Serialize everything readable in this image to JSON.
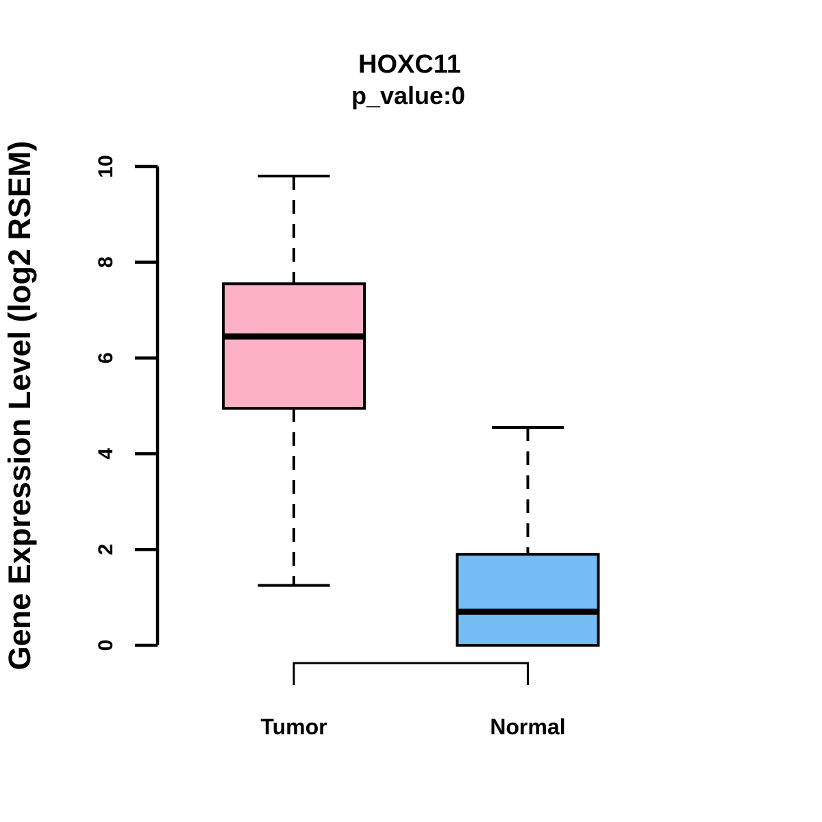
{
  "chart_data": {
    "type": "boxplot",
    "title": "HOXC11",
    "subtitle": "p_value:0",
    "xlabel": "",
    "ylabel": "Gene Expression Level (log2 RSEM)",
    "categories": [
      "Tumor",
      "Normal"
    ],
    "ylim": [
      0,
      10
    ],
    "yticks": [
      0,
      2,
      4,
      6,
      8,
      10
    ],
    "grid": false,
    "legend_position": "none",
    "background_color": "#ffffff",
    "line_color": "#000000",
    "series": [
      {
        "name": "Tumor",
        "fill_color": "#FCB2C4",
        "whisker_low": 1.25,
        "q1": 4.95,
        "median": 6.45,
        "q3": 7.55,
        "whisker_high": 9.8
      },
      {
        "name": "Normal",
        "fill_color": "#74BDF5",
        "whisker_low": 0,
        "q1": 0,
        "median": 0.7,
        "q3": 1.9,
        "whisker_high": 4.55
      }
    ],
    "annotations": {
      "comparison_bracket_between": [
        "Tumor",
        "Normal"
      ]
    }
  }
}
